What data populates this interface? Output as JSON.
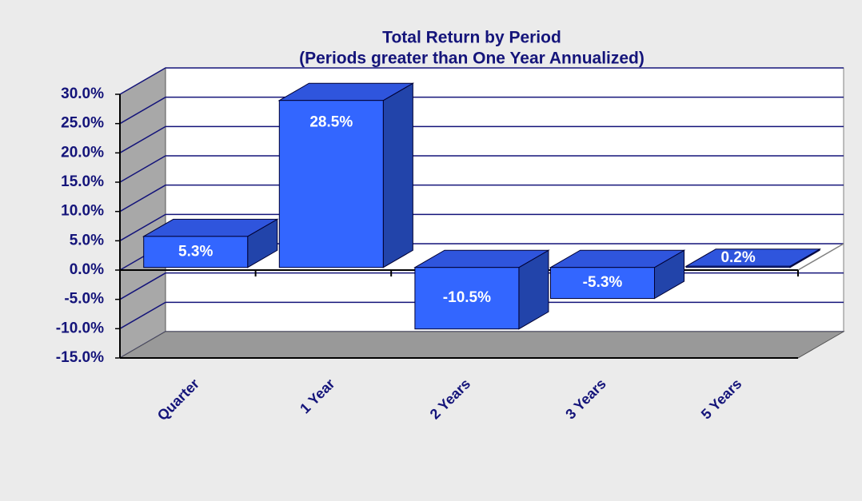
{
  "chart_data": {
    "type": "bar3d",
    "title": "Total Return by Period",
    "subtitle": "(Periods greater than One Year Annualized)",
    "categories": [
      "Quarter",
      "1 Year",
      "2 Years",
      "3 Years",
      "5 Years"
    ],
    "values": [
      5.3,
      28.5,
      -10.5,
      -5.3,
      0.2
    ],
    "value_labels": [
      "5.3%",
      "28.5%",
      "-10.5%",
      "-5.3%",
      "0.2%"
    ],
    "color": "#3366ff",
    "ylim": [
      -15,
      30
    ],
    "yticks": [
      {
        "value": -15,
        "label": "-15.0%"
      },
      {
        "value": -10,
        "label": "-10.0%"
      },
      {
        "value": -5,
        "label": "-5.0%"
      },
      {
        "value": 0,
        "label": "0.0%"
      },
      {
        "value": 5,
        "label": "5.0%"
      },
      {
        "value": 10,
        "label": "10.0%"
      },
      {
        "value": 15,
        "label": "15.0%"
      },
      {
        "value": 20,
        "label": "20.0%"
      },
      {
        "value": 25,
        "label": "25.0%"
      },
      {
        "value": 30,
        "label": "30.0%"
      }
    ],
    "grid": true
  }
}
